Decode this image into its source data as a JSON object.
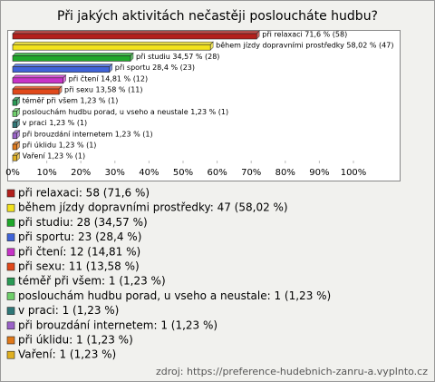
{
  "chart_data": {
    "type": "bar",
    "orientation": "horizontal",
    "title": "Při jakých aktivitách nečastěji posloucháte hudbu?",
    "values": [
      71.6,
      58.02,
      34.57,
      28.4,
      14.81,
      13.58,
      1.23,
      1.23,
      1.23,
      1.23,
      1.23,
      1.23
    ],
    "value_labels": [
      "při relaxaci 71,6 % (58)",
      "během jízdy dopravními prostředky 58,02 % (47)",
      "při studiu 34,57 % (28)",
      "při sportu 28,4 % (23)",
      "při čtení 14,81 % (12)",
      "při sexu 13,58 % (11)",
      "téměř při všem 1,23 % (1)",
      "poslouchám hudbu porad, u vseho a neustale 1,23 % (1)",
      "v praci 1,23 % (1)",
      "při brouzdání internetem 1,23 % (1)",
      "při úklidu 1,23 % (1)",
      "Vaření 1,23 % (1)"
    ],
    "legend_labels": [
      "při relaxaci: 58 (71,6 %)",
      "během jízdy dopravními prostředky: 47 (58,02 %)",
      "při studiu: 28 (34,57 %)",
      "při sportu: 23 (28,4 %)",
      "při čtení: 12 (14,81 %)",
      "při sexu: 11 (13,58 %)",
      "téměř při všem: 1 (1,23 %)",
      "poslouchám hudbu porad, u vseho a neustale: 1 (1,23 %)",
      "v praci: 1 (1,23 %)",
      "při brouzdání internetem: 1 (1,23 %)",
      "při úklidu: 1 (1,23 %)",
      "Vaření: 1 (1,23 %)"
    ],
    "colors": [
      "#b3201c",
      "#f2e21c",
      "#1fa82a",
      "#3f63d8",
      "#c733c7",
      "#e0481a",
      "#2a9a55",
      "#6fcf6a",
      "#2f7777",
      "#9a62c8",
      "#e07818",
      "#e0b020"
    ],
    "xlim": [
      0,
      100
    ],
    "xticks": [
      {
        "value": 0,
        "label": "0%"
      },
      {
        "value": 10,
        "label": "10%"
      },
      {
        "value": 20,
        "label": "20%"
      },
      {
        "value": 30,
        "label": "30%"
      },
      {
        "value": 40,
        "label": "40%"
      },
      {
        "value": 50,
        "label": "50%"
      },
      {
        "value": 60,
        "label": "60%"
      },
      {
        "value": 70,
        "label": "70%"
      },
      {
        "value": 80,
        "label": "80%"
      },
      {
        "value": 90,
        "label": "90%"
      },
      {
        "value": 100,
        "label": "100%"
      }
    ],
    "source": "zdroj: https://preference-hudebnich-zanru-a.vyplnto.cz"
  }
}
